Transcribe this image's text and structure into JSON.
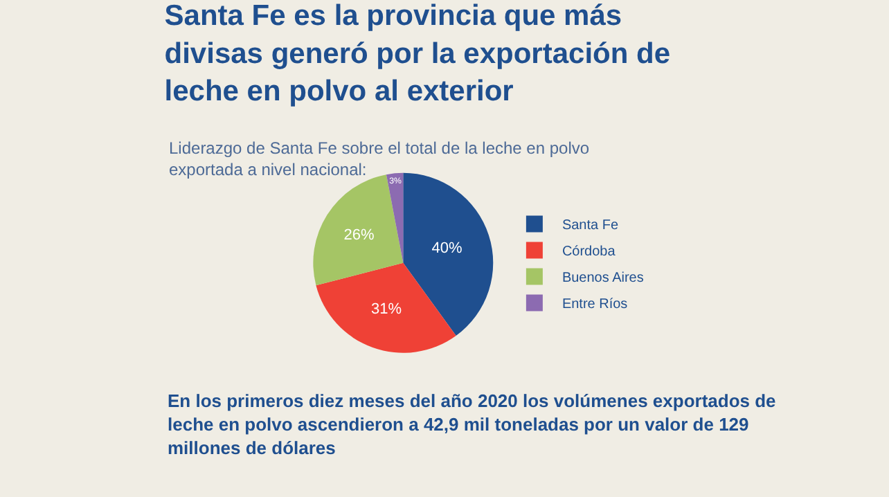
{
  "chart_data": {
    "type": "pie",
    "title": "Santa Fe es la provincia que más divisas generó por la exportación de leche en polvo al exterior",
    "subtitle": "Liderazgo de Santa Fe sobre el total de la leche en polvo exportada a nivel nacional:",
    "categories": [
      "Santa Fe",
      "Córdoba",
      "Buenos Aires",
      "Entre Ríos"
    ],
    "values": [
      40,
      31,
      26,
      3
    ],
    "colors": [
      "#1f4f8f",
      "#ef4136",
      "#a5c565",
      "#8c6bb1"
    ],
    "value_labels": [
      "40%",
      "31%",
      "26%",
      "3%"
    ],
    "legend": "right",
    "annotations": [
      "En los primeros diez meses del año 2020 los volúmenes exportados de leche en polvo ascendieron a 42,9 mil toneladas por un valor de 129 millones de dólares"
    ]
  }
}
